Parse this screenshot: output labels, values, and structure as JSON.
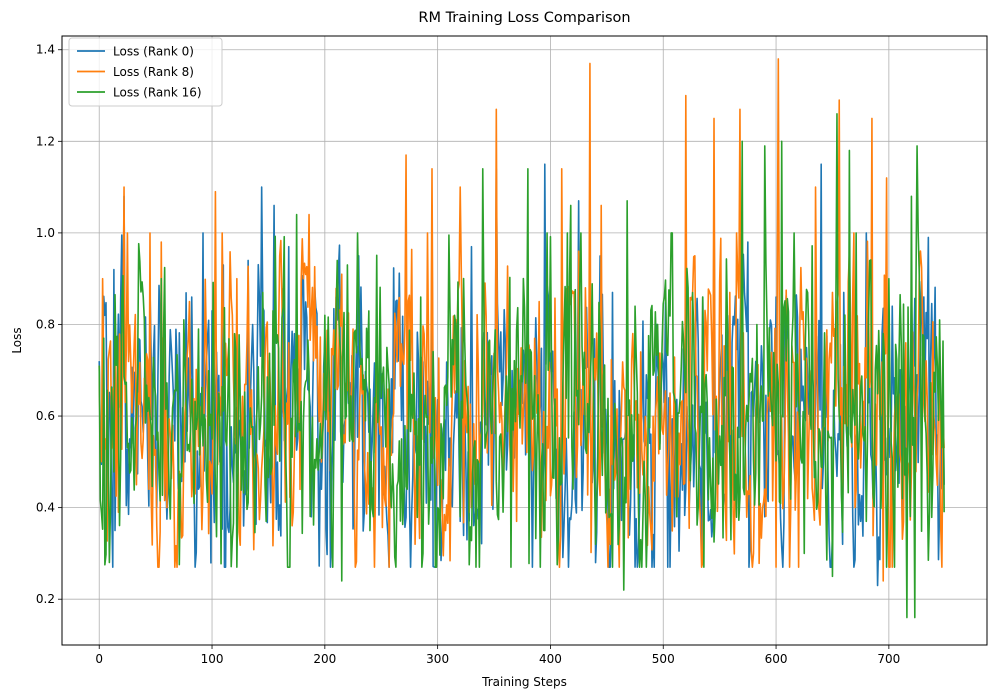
{
  "chart_data": {
    "type": "line",
    "title": "RM Training Loss Comparison",
    "xlabel": "Training Steps",
    "ylabel": "Loss",
    "xlim": [
      -33,
      787
    ],
    "ylim": [
      0.1,
      1.43
    ],
    "xticks": [
      0,
      100,
      200,
      300,
      400,
      500,
      600,
      700
    ],
    "yticks": [
      0.2,
      0.4,
      0.6,
      0.8,
      1.0,
      1.2,
      1.4
    ],
    "xtick_labels": [
      "0",
      "100",
      "200",
      "300",
      "400",
      "500",
      "600",
      "700"
    ],
    "ytick_labels": [
      "0.2",
      "0.4",
      "0.6",
      "0.8",
      "1.0",
      "1.2",
      "1.4"
    ],
    "grid": true,
    "legend_position": "upper-left",
    "x_range": [
      0,
      749
    ],
    "x_step": 1,
    "series": [
      {
        "name": "Loss (Rank 0)",
        "color": "#1f77b4",
        "landmarks": [
          [
            0,
            0.72
          ],
          [
            5,
            0.82
          ],
          [
            7,
            0.56
          ],
          [
            13,
            0.92
          ],
          [
            18,
            0.62
          ],
          [
            22,
            1.08
          ],
          [
            27,
            0.55
          ],
          [
            45,
            0.88
          ],
          [
            50,
            0.49
          ],
          [
            58,
            0.85
          ],
          [
            70,
            0.44
          ],
          [
            82,
            0.86
          ],
          [
            93,
            0.48
          ],
          [
            100,
            0.83
          ],
          [
            110,
            0.93
          ],
          [
            118,
            0.49
          ],
          [
            128,
            0.36
          ],
          [
            132,
            0.94
          ],
          [
            144,
            1.1
          ],
          [
            150,
            0.52
          ],
          [
            155,
            1.06
          ],
          [
            168,
            0.97
          ],
          [
            178,
            0.53
          ],
          [
            188,
            0.38
          ],
          [
            200,
            0.77
          ],
          [
            210,
            0.86
          ],
          [
            230,
            0.95
          ],
          [
            245,
            0.52
          ],
          [
            260,
            0.52
          ],
          [
            275,
            0.42
          ],
          [
            295,
            1.06
          ],
          [
            302,
            0.41
          ],
          [
            320,
            0.37
          ],
          [
            330,
            0.97
          ],
          [
            352,
            1.14
          ],
          [
            380,
            0.92
          ],
          [
            395,
            1.15
          ],
          [
            405,
            0.42
          ],
          [
            425,
            1.07
          ],
          [
            440,
            0.28
          ],
          [
            455,
            0.87
          ],
          [
            470,
            0.34
          ],
          [
            485,
            0.69
          ],
          [
            505,
            0.64
          ],
          [
            535,
            0.86
          ],
          [
            545,
            1.11
          ],
          [
            560,
            0.41
          ],
          [
            575,
            0.98
          ],
          [
            590,
            0.38
          ],
          [
            600,
            0.86
          ],
          [
            620,
            0.42
          ],
          [
            640,
            1.15
          ],
          [
            660,
            0.87
          ],
          [
            675,
            0.37
          ],
          [
            690,
            0.23
          ],
          [
            703,
            0.84
          ],
          [
            712,
            0.35
          ],
          [
            725,
            0.69
          ],
          [
            735,
            0.99
          ],
          [
            749,
            0.45
          ]
        ]
      },
      {
        "name": "Loss (Rank 8)",
        "color": "#ff7f0e",
        "landmarks": [
          [
            0,
            0.71
          ],
          [
            3,
            0.9
          ],
          [
            6,
            0.55
          ],
          [
            17,
            0.39
          ],
          [
            22,
            1.1
          ],
          [
            33,
            0.45
          ],
          [
            45,
            1.0
          ],
          [
            55,
            0.98
          ],
          [
            60,
            0.4
          ],
          [
            80,
            0.85
          ],
          [
            85,
            0.43
          ],
          [
            100,
            0.43
          ],
          [
            103,
            1.09
          ],
          [
            122,
            0.9
          ],
          [
            150,
            0.56
          ],
          [
            160,
            0.95
          ],
          [
            178,
            0.44
          ],
          [
            186,
            1.04
          ],
          [
            205,
            0.48
          ],
          [
            225,
            0.79
          ],
          [
            238,
            0.52
          ],
          [
            253,
            0.42
          ],
          [
            272,
            1.17
          ],
          [
            280,
            0.32
          ],
          [
            295,
            1.14
          ],
          [
            302,
            0.45
          ],
          [
            320,
            1.1
          ],
          [
            330,
            0.4
          ],
          [
            352,
            1.27
          ],
          [
            370,
            0.37
          ],
          [
            390,
            0.85
          ],
          [
            410,
            1.14
          ],
          [
            425,
            0.96
          ],
          [
            435,
            1.37
          ],
          [
            445,
            1.06
          ],
          [
            460,
            0.39
          ],
          [
            480,
            0.74
          ],
          [
            500,
            0.56
          ],
          [
            520,
            1.3
          ],
          [
            535,
            0.28
          ],
          [
            545,
            1.25
          ],
          [
            555,
            0.4
          ],
          [
            568,
            1.27
          ],
          [
            580,
            0.3
          ],
          [
            600,
            0.27
          ],
          [
            602,
            1.38
          ],
          [
            620,
            0.27
          ],
          [
            635,
            1.1
          ],
          [
            650,
            0.87
          ],
          [
            656,
            1.29
          ],
          [
            670,
            0.4
          ],
          [
            685,
            1.25
          ],
          [
            695,
            0.24
          ],
          [
            698,
            1.12
          ],
          [
            715,
            0.76
          ],
          [
            730,
            0.79
          ],
          [
            745,
            0.76
          ],
          [
            749,
            0.53
          ]
        ]
      },
      {
        "name": "Loss (Rank 16)",
        "color": "#2ca02c",
        "landmarks": [
          [
            0,
            0.71
          ],
          [
            4,
            0.77
          ],
          [
            8,
            0.52
          ],
          [
            20,
            0.85
          ],
          [
            30,
            0.55
          ],
          [
            40,
            0.81
          ],
          [
            55,
            0.9
          ],
          [
            70,
            0.63
          ],
          [
            88,
            0.79
          ],
          [
            100,
            0.55
          ],
          [
            120,
            0.78
          ],
          [
            130,
            0.47
          ],
          [
            145,
            0.87
          ],
          [
            155,
            0.58
          ],
          [
            175,
            1.04
          ],
          [
            200,
            0.82
          ],
          [
            215,
            0.24
          ],
          [
            220,
            0.93
          ],
          [
            240,
            0.35
          ],
          [
            255,
            0.75
          ],
          [
            268,
            0.55
          ],
          [
            285,
            0.86
          ],
          [
            300,
            0.4
          ],
          [
            315,
            0.82
          ],
          [
            340,
            1.14
          ],
          [
            365,
            0.27
          ],
          [
            380,
            1.14
          ],
          [
            395,
            0.35
          ],
          [
            418,
            1.06
          ],
          [
            440,
            0.32
          ],
          [
            465,
            0.22
          ],
          [
            468,
            1.07
          ],
          [
            480,
            0.33
          ],
          [
            495,
            0.8
          ],
          [
            512,
            0.38
          ],
          [
            535,
            0.86
          ],
          [
            560,
            0.33
          ],
          [
            570,
            1.2
          ],
          [
            590,
            1.19
          ],
          [
            605,
            1.2
          ],
          [
            625,
            0.3
          ],
          [
            650,
            0.25
          ],
          [
            654,
            1.26
          ],
          [
            665,
            1.18
          ],
          [
            680,
            0.37
          ],
          [
            700,
            0.9
          ],
          [
            712,
            0.42
          ],
          [
            716,
            0.16
          ],
          [
            720,
            1.08
          ],
          [
            723,
            0.16
          ],
          [
            725,
            1.19
          ],
          [
            745,
            0.81
          ],
          [
            749,
            0.39
          ]
        ]
      }
    ]
  }
}
